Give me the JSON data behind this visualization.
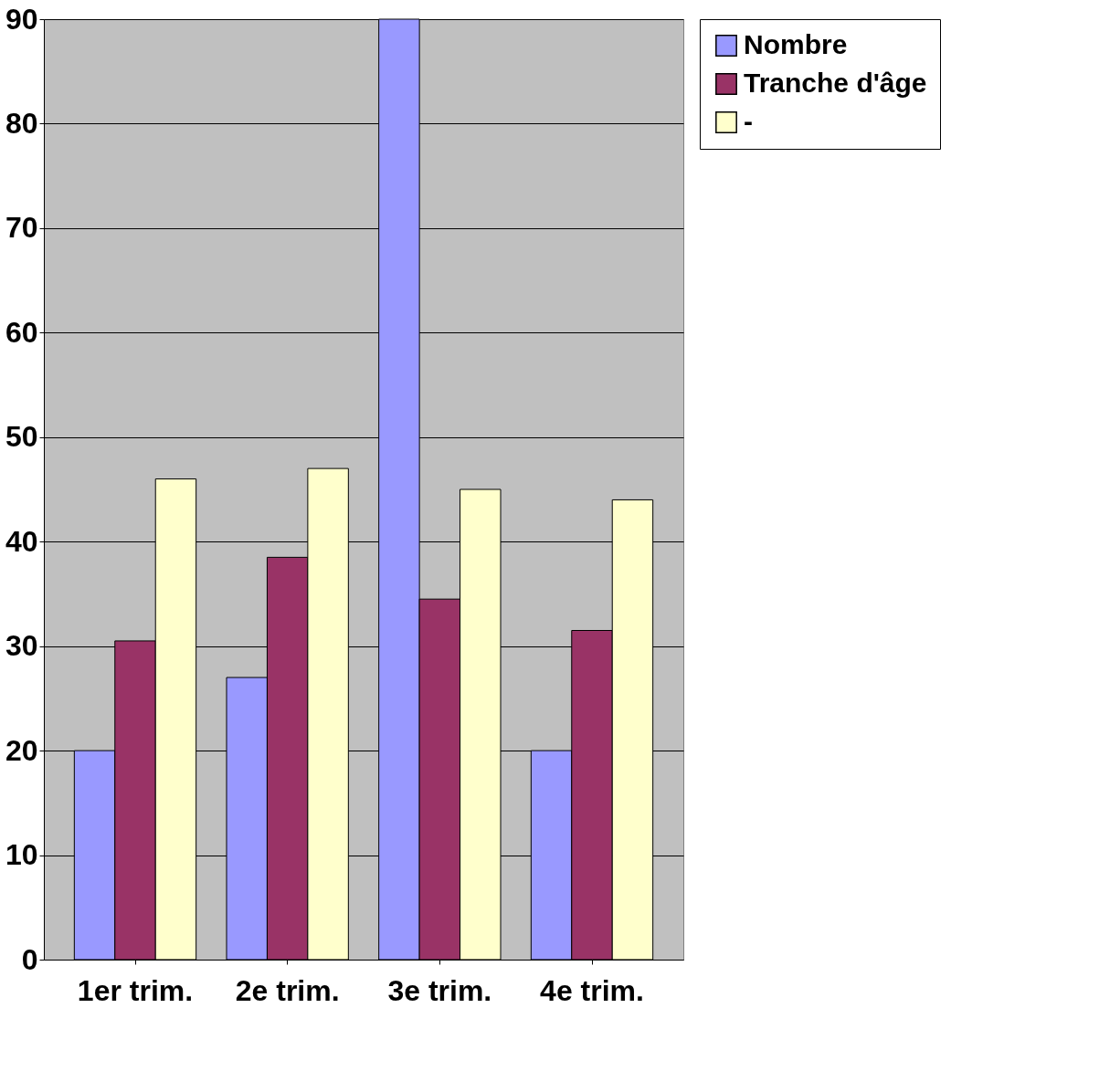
{
  "chart_data": {
    "type": "bar",
    "categories": [
      "1er trim.",
      "2e trim.",
      "3e trim.",
      "4e trim."
    ],
    "series": [
      {
        "name": "Nombre",
        "color": "#9999ff",
        "values": [
          20,
          27,
          90,
          20
        ]
      },
      {
        "name": "Tranche d'âge",
        "color": "#993366",
        "values": [
          30.5,
          38.5,
          34.5,
          31.5
        ]
      },
      {
        "name": "-",
        "color": "#ffffcc",
        "values": [
          46,
          47,
          45,
          44
        ]
      }
    ],
    "ylim": [
      0,
      90
    ],
    "yticks": [
      0,
      10,
      20,
      30,
      40,
      50,
      60,
      70,
      80,
      90
    ],
    "grid": "y",
    "legend": "right"
  }
}
